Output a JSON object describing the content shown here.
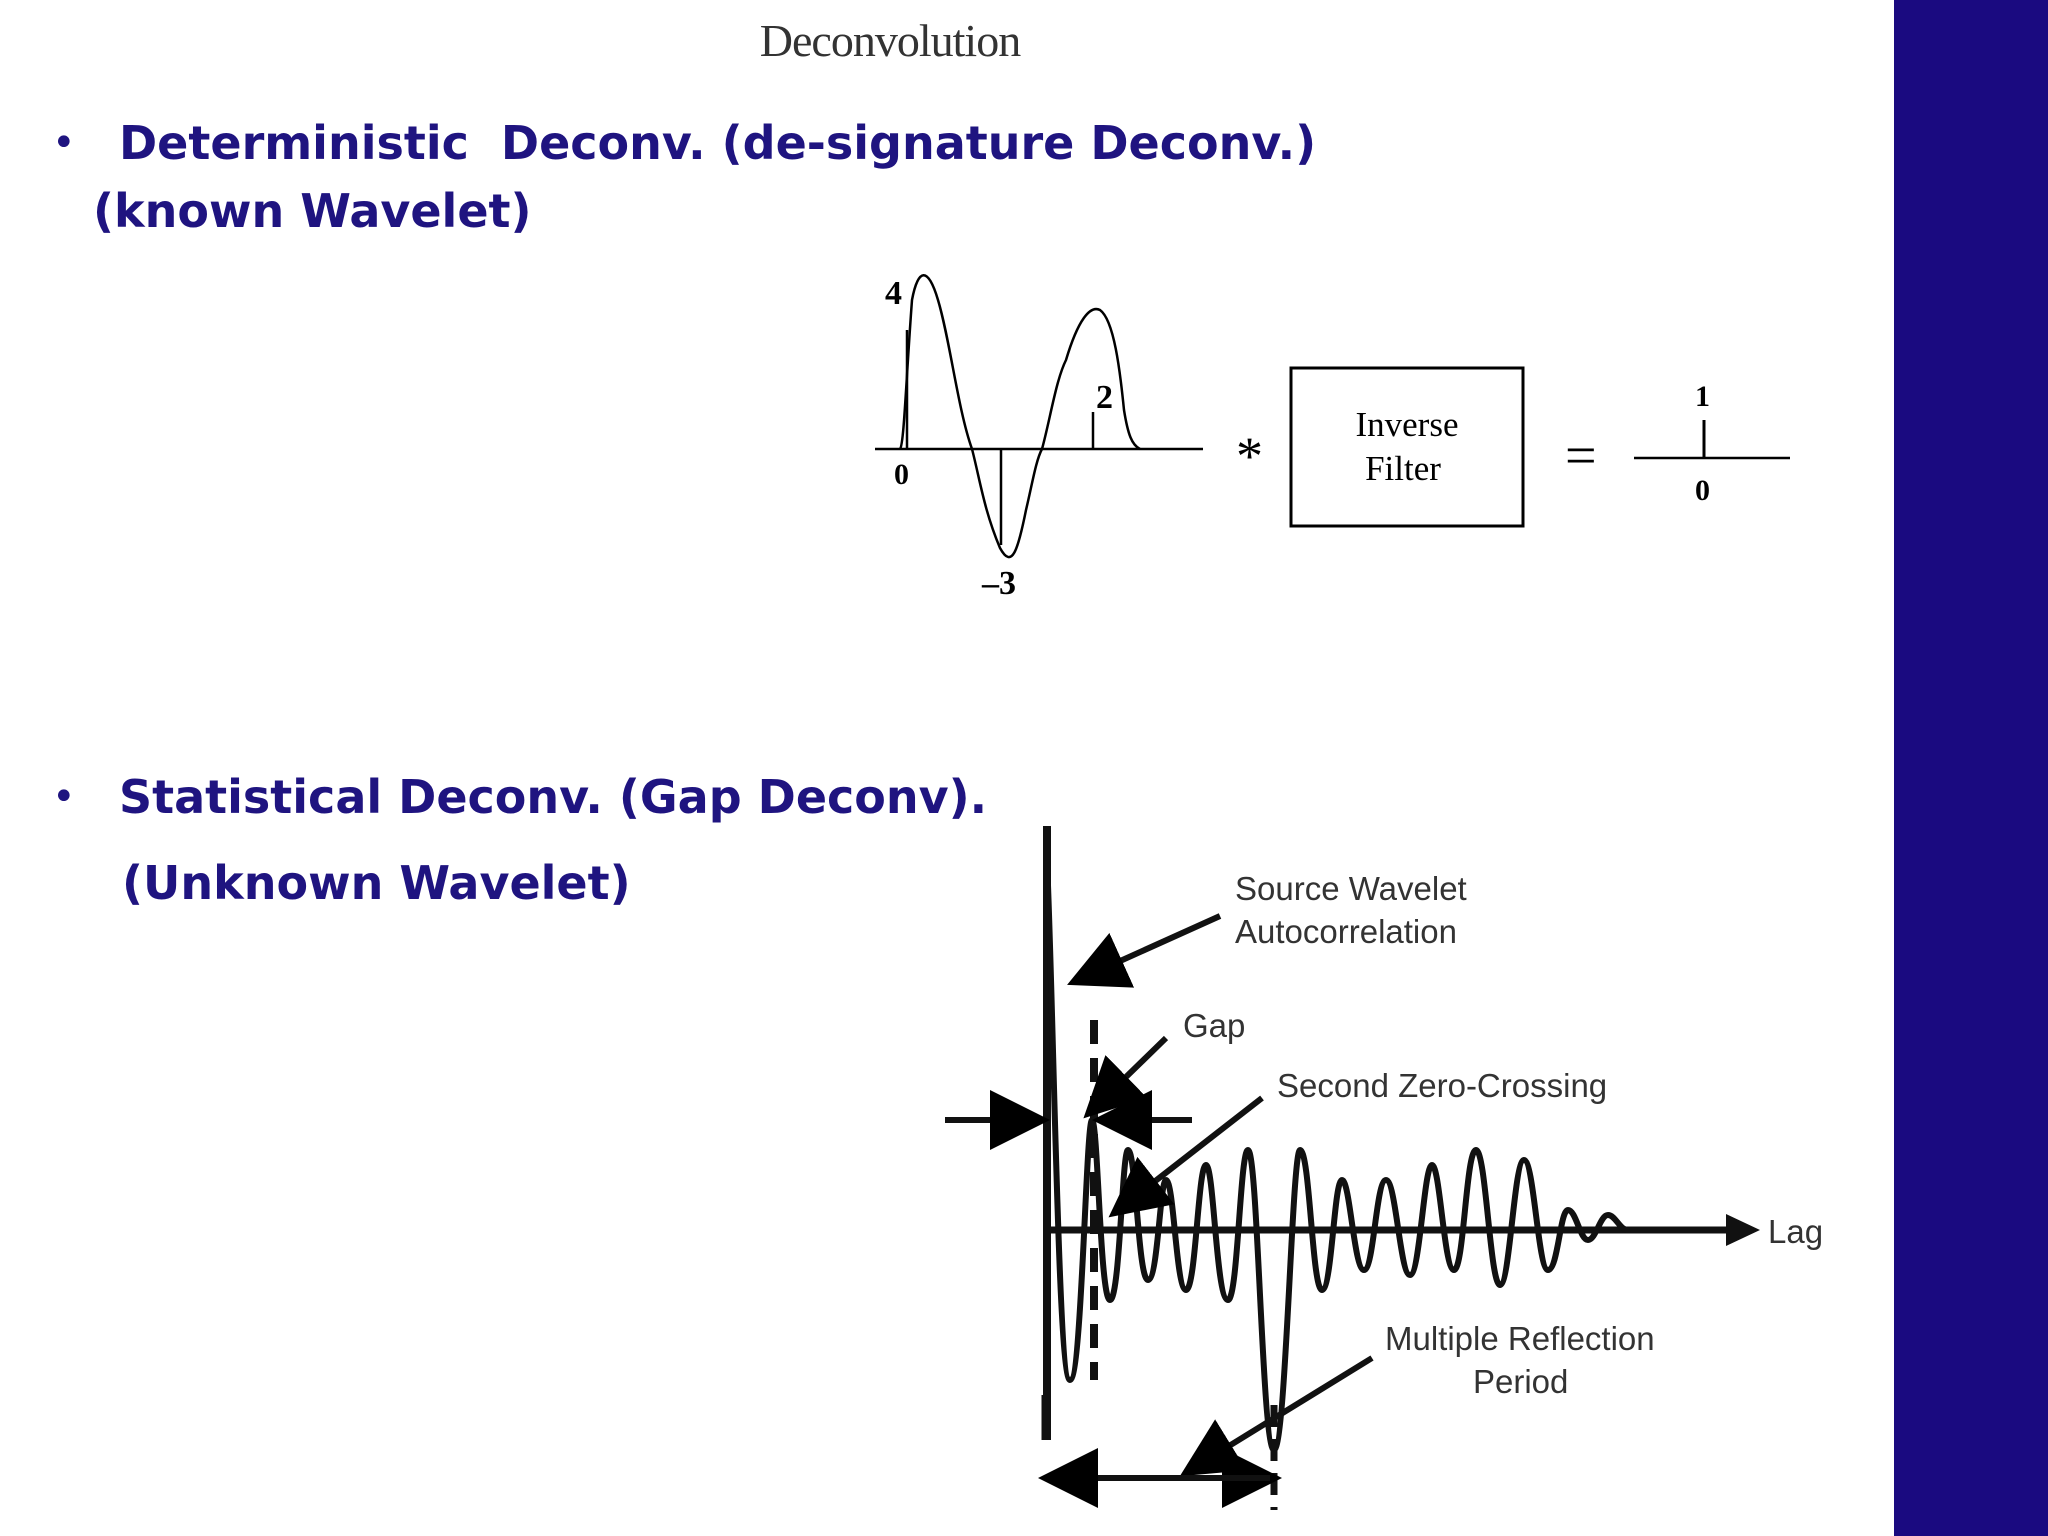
{
  "slide": {
    "title": "Deconvolution"
  },
  "bullets": [
    {
      "line1": "Deterministic  Deconv. (de-signature Deconv.)",
      "line2": "(known Wavelet)"
    },
    {
      "line1": "Statistical Deconv. (Gap Deconv).",
      "line2": "(Unknown Wavelet)"
    }
  ],
  "figure1": {
    "peak_label": "4",
    "second_peak_label": "2",
    "trough_label": "–3",
    "origin_label": "0",
    "operator": "*",
    "box_line1": "Inverse",
    "box_line2": "Filter",
    "equals": "=",
    "spike_value": "1",
    "spike_origin": "0"
  },
  "figure2": {
    "label_source_1": "Source Wavelet",
    "label_source_2": "Autocorrelation",
    "label_gap": "Gap",
    "label_zero_crossing": "Second Zero-Crossing",
    "label_lag": "Lag",
    "label_multiple_1": "Multiple Reflection",
    "label_multiple_2": "Period"
  },
  "colors": {
    "accent": "#1a0a80",
    "bullet_text": "#1f1480"
  }
}
